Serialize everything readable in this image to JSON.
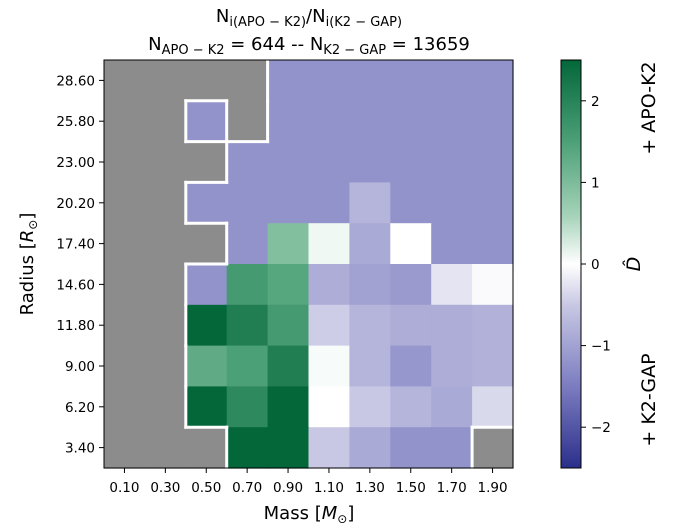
{
  "chart_data": {
    "type": "heatmap",
    "title_line1": {
      "main": "N",
      "sub1": "i(APO − K2)",
      "mid": "/N",
      "sub2": "i(K2 − GAP)"
    },
    "title_line2": {
      "p1": "N",
      "sub1": "APO − K2",
      "p2": " = 644 -- N",
      "sub2": "K2 − GAP",
      "p3": " = 13659"
    },
    "xlabel": {
      "main": "Mass [",
      "italic": "M",
      "sub": "⊙",
      "end": "]"
    },
    "ylabel": {
      "main": "Radius [",
      "italic": "R",
      "sub": "⊙",
      "end": "]"
    },
    "x_ticks": [
      "0.10",
      "0.30",
      "0.50",
      "0.70",
      "0.90",
      "1.10",
      "1.30",
      "1.50",
      "1.70",
      "1.90"
    ],
    "y_ticks": [
      "3.40",
      "6.20",
      "9.00",
      "11.80",
      "14.60",
      "17.40",
      "20.20",
      "23.00",
      "25.80",
      "28.60"
    ],
    "colorbar": {
      "label": "D̂",
      "ticks": [
        "−2",
        "−1",
        "0",
        "1",
        "2"
      ],
      "tick_values": [
        -2,
        -1,
        0,
        1,
        2
      ],
      "range": [
        -2.5,
        2.5
      ],
      "top_label": "+ APO-K2",
      "bottom_label": "+ K2-GAP",
      "colors": {
        "negative_end": "#2b2f8a",
        "center": "#ffffff",
        "positive_end": "#03673a"
      }
    },
    "empty_color": "#8c8c8c",
    "boundary_color": "#ffffff",
    "grid_values_note": "rows listed top (28.60) to bottom (3.40); null = no data (gray)",
    "grid": [
      [
        null,
        null,
        null,
        null,
        -1.2,
        -1.2,
        -1.2,
        -1.2,
        -1.2,
        -1.2
      ],
      [
        null,
        null,
        -1.2,
        null,
        -1.2,
        -1.2,
        -1.2,
        -1.2,
        -1.2,
        -1.2
      ],
      [
        null,
        null,
        null,
        -1.2,
        -1.2,
        -1.2,
        -1.2,
        -1.2,
        -1.2,
        -1.2
      ],
      [
        null,
        null,
        -1.2,
        -1.2,
        -1.2,
        -1.2,
        -0.75,
        -1.2,
        -1.2,
        -1.2
      ],
      [
        null,
        null,
        null,
        -1.2,
        0.95,
        0.1,
        -0.9,
        0.0,
        -1.2,
        -1.2
      ],
      [
        null,
        null,
        -1.2,
        1.6,
        1.4,
        -0.85,
        -1.0,
        -1.1,
        -0.25,
        -0.05
      ],
      [
        null,
        null,
        2.5,
        2.1,
        1.6,
        -0.45,
        -0.75,
        -0.85,
        -0.85,
        -0.8
      ],
      [
        null,
        null,
        1.3,
        1.5,
        2.1,
        0.05,
        -0.75,
        -1.15,
        -0.85,
        -0.8
      ],
      [
        null,
        null,
        2.5,
        1.9,
        2.5,
        0.0,
        -0.5,
        -0.75,
        -0.9,
        -0.35
      ],
      [
        null,
        null,
        null,
        2.5,
        2.5,
        -0.5,
        -0.9,
        -1.2,
        -1.2,
        null
      ]
    ],
    "boundary_cells": [
      [
        0,
        2
      ],
      [
        0,
        3
      ],
      [
        1,
        3
      ],
      [
        2,
        2
      ],
      [
        3,
        2
      ],
      [
        4,
        2
      ],
      [
        5,
        2
      ],
      [
        6,
        2
      ],
      [
        7,
        2
      ],
      [
        8,
        2
      ],
      [
        9,
        3
      ],
      [
        9,
        4
      ]
    ]
  }
}
